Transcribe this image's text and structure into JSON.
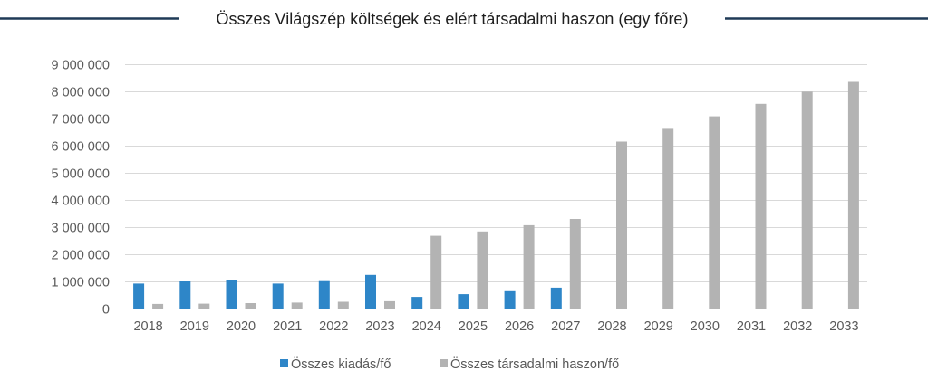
{
  "chart_data": {
    "type": "bar",
    "title": "Összes Világszép költségek és elért társadalmi haszon (egy főre)",
    "xlabel": "",
    "ylabel": "",
    "categories": [
      "2018",
      "2019",
      "2020",
      "2021",
      "2022",
      "2023",
      "2024",
      "2025",
      "2026",
      "2027",
      "2028",
      "2029",
      "2030",
      "2031",
      "2032",
      "2033"
    ],
    "ylim": [
      0,
      9000000
    ],
    "yticks": [
      0,
      1000000,
      2000000,
      3000000,
      4000000,
      5000000,
      6000000,
      7000000,
      8000000,
      9000000
    ],
    "ytick_labels": [
      "0",
      "1 000 000",
      "2 000 000",
      "3 000 000",
      "4 000 000",
      "5 000 000",
      "6 000 000",
      "7 000 000",
      "8 000 000",
      "9 000 000"
    ],
    "grid": "horizontal",
    "legend_position": "bottom",
    "series": [
      {
        "name": "Összes kiadás/fő",
        "color": "#2e86c8",
        "values": [
          920000,
          1000000,
          1050000,
          920000,
          1010000,
          1240000,
          430000,
          530000,
          640000,
          770000,
          null,
          null,
          null,
          null,
          null,
          null
        ]
      },
      {
        "name": "Összes társadalmi haszon/fő",
        "color": "#b3b3b3",
        "values": [
          170000,
          180000,
          200000,
          220000,
          250000,
          270000,
          2680000,
          2840000,
          3070000,
          3300000,
          6150000,
          6620000,
          7080000,
          7540000,
          7990000,
          8350000
        ]
      }
    ]
  },
  "colors": {
    "title_rule": "#1f3a57",
    "gridline": "#d9d9d9",
    "axis": "#d9d9d9",
    "text": "#595959"
  }
}
